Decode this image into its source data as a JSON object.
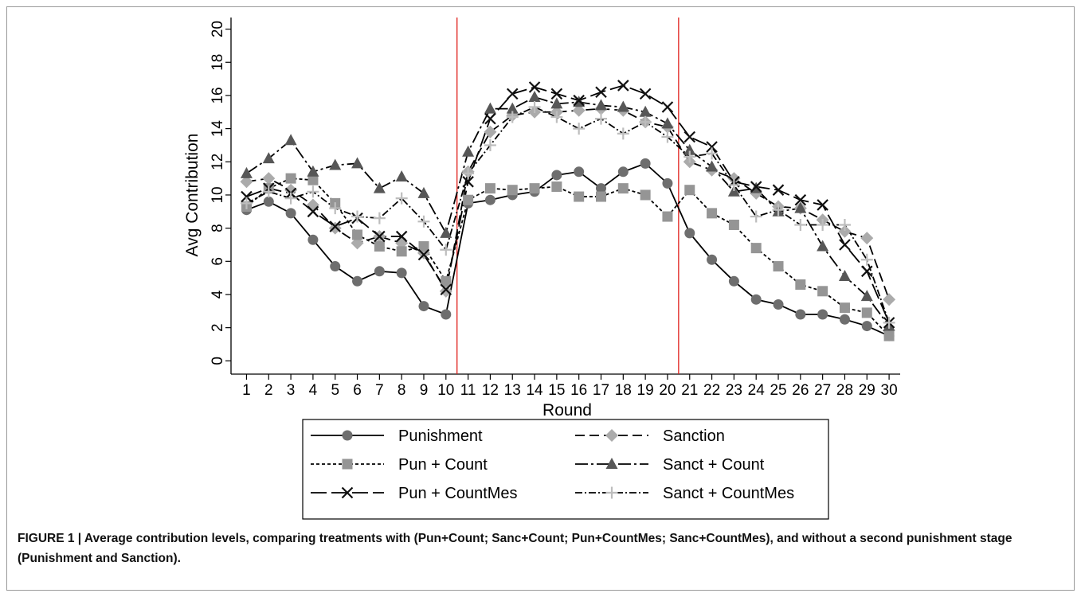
{
  "chart_data": {
    "type": "line",
    "ylabel": "Avg Contribution",
    "xlabel": "Round",
    "caption": "FIGURE 1 | Average contribution levels, comparing treatments with (Pun+Count; Sanc+Count; Pun+CountMes; Sanc+CountMes), and without a second punishment stage (Punishment and Sanction).",
    "x": [
      1,
      2,
      3,
      4,
      5,
      6,
      7,
      8,
      9,
      10,
      11,
      12,
      13,
      14,
      15,
      16,
      17,
      18,
      19,
      20,
      21,
      22,
      23,
      24,
      25,
      26,
      27,
      28,
      29,
      30
    ],
    "xlim": [
      0.3,
      30.5
    ],
    "xticks": [
      1,
      2,
      3,
      4,
      5,
      6,
      7,
      8,
      9,
      10,
      11,
      12,
      13,
      14,
      15,
      16,
      17,
      18,
      19,
      20,
      21,
      22,
      23,
      24,
      25,
      26,
      27,
      28,
      29,
      30
    ],
    "ylim": [
      -0.8,
      20.7
    ],
    "yticks": [
      0,
      2,
      4,
      6,
      8,
      10,
      12,
      14,
      16,
      18,
      20
    ],
    "vlines": [
      10.5,
      20.5
    ],
    "vline_color": "#e0201b",
    "series": [
      {
        "name": "Punishment",
        "color": "#6e6e6e",
        "marker": "circle",
        "linestyle": "solid",
        "values": [
          9.1,
          9.6,
          8.9,
          7.3,
          5.7,
          4.8,
          5.4,
          5.3,
          3.3,
          2.8,
          9.5,
          9.7,
          10.0,
          10.2,
          11.2,
          11.4,
          10.4,
          11.4,
          11.9,
          10.7,
          7.7,
          6.1,
          4.8,
          3.7,
          3.4,
          2.8,
          2.8,
          2.5,
          2.1,
          1.5
        ]
      },
      {
        "name": "Sanction",
        "color": "#ababab",
        "marker": "diamond",
        "linestyle": "dash",
        "values": [
          10.8,
          11.0,
          10.3,
          9.4,
          8.0,
          7.1,
          7.5,
          7.1,
          6.5,
          4.2,
          11.4,
          13.8,
          14.8,
          15.0,
          15.0,
          15.1,
          15.2,
          15.1,
          14.4,
          14.1,
          12.0,
          11.5,
          11.0,
          10.1,
          9.3,
          9.2,
          8.5,
          7.8,
          7.4,
          3.7
        ]
      },
      {
        "name": "Pun + Count",
        "color": "#959595",
        "marker": "square",
        "linestyle": "shortdash",
        "values": [
          9.3,
          10.4,
          11.0,
          10.9,
          9.5,
          7.6,
          6.9,
          6.6,
          6.9,
          4.8,
          9.7,
          10.4,
          10.3,
          10.4,
          10.5,
          9.9,
          9.9,
          10.4,
          10.0,
          8.7,
          10.3,
          8.9,
          8.2,
          6.8,
          5.7,
          4.6,
          4.2,
          3.2,
          2.9,
          1.5
        ]
      },
      {
        "name": "Sanct + Count",
        "color": "#575757",
        "marker": "triangle",
        "linestyle": "longdashdot",
        "values": [
          11.3,
          12.2,
          13.3,
          11.4,
          11.8,
          11.9,
          10.4,
          11.1,
          10.1,
          7.7,
          12.6,
          15.2,
          15.2,
          15.9,
          15.5,
          15.6,
          15.4,
          15.3,
          15.0,
          14.3,
          12.7,
          11.7,
          10.2,
          10.4,
          9.0,
          9.2,
          6.9,
          5.1,
          3.9,
          2.1
        ]
      },
      {
        "name": "Pun + CountMes",
        "color": "#111111",
        "marker": "x",
        "linestyle": "longdash",
        "values": [
          9.9,
          10.4,
          10.1,
          9.0,
          8.1,
          8.6,
          7.5,
          7.5,
          6.4,
          4.3,
          10.8,
          14.6,
          16.1,
          16.5,
          16.1,
          15.7,
          16.2,
          16.6,
          16.1,
          15.3,
          13.5,
          12.9,
          10.8,
          10.5,
          10.3,
          9.7,
          9.4,
          7.0,
          5.4,
          2.3
        ]
      },
      {
        "name": "Sanct + CountMes",
        "color": "#bdbdbd",
        "marker": "plus",
        "linestyle": "dashdot",
        "values": [
          9.5,
          10.2,
          9.8,
          10.2,
          9.2,
          8.7,
          8.6,
          9.8,
          8.4,
          6.7,
          11.3,
          13.0,
          14.7,
          15.3,
          14.7,
          14.0,
          14.6,
          13.7,
          14.4,
          13.5,
          12.3,
          12.5,
          10.6,
          8.7,
          9.1,
          8.2,
          8.2,
          8.2,
          6.1,
          2.3
        ]
      }
    ]
  }
}
